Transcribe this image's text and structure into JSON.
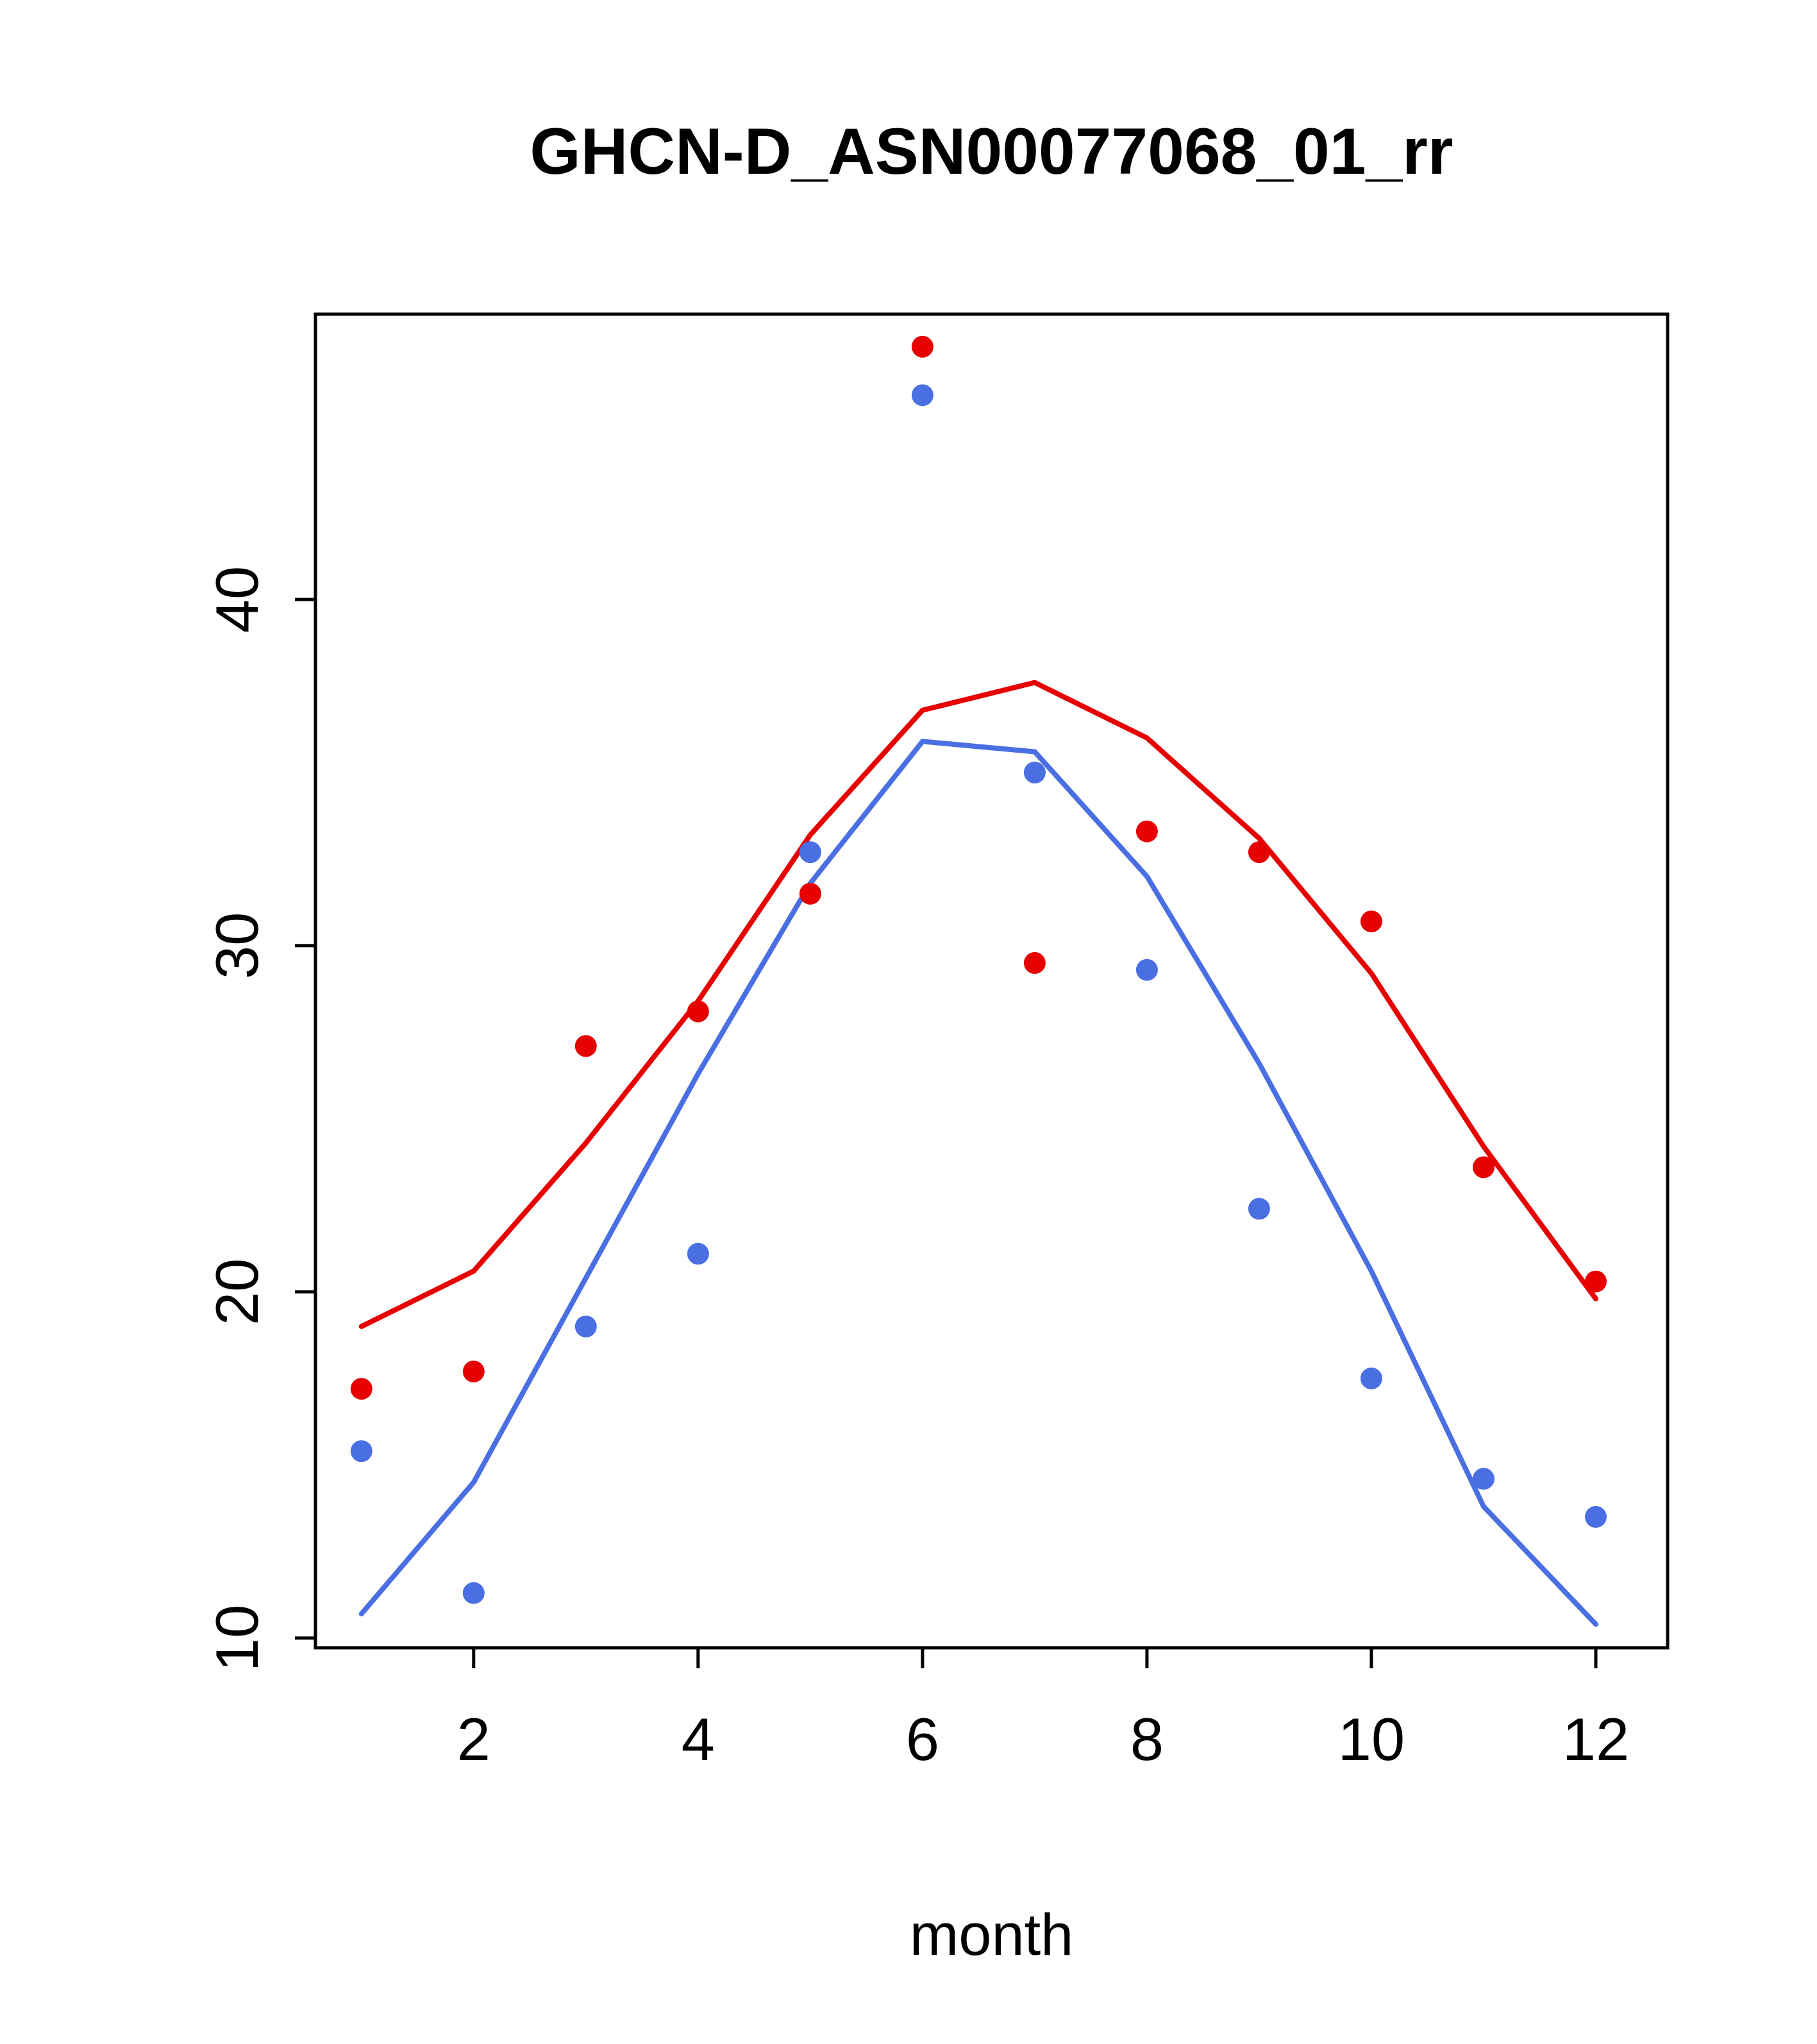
{
  "chart_data": {
    "type": "line",
    "title": "GHCN-D_ASN00077068_01_rr",
    "xlabel": "month",
    "ylabel": "",
    "x": [
      1,
      2,
      3,
      4,
      5,
      6,
      7,
      8,
      9,
      10,
      11,
      12
    ],
    "series": [
      {
        "name": "red-line",
        "kind": "line",
        "color": "#e60000",
        "values": [
          19.0,
          20.6,
          24.3,
          28.4,
          33.2,
          36.8,
          37.6,
          36.0,
          33.1,
          29.2,
          24.2,
          19.8
        ]
      },
      {
        "name": "blue-line",
        "kind": "line",
        "color": "#4a6fe3",
        "values": [
          10.7,
          14.5,
          20.4,
          26.3,
          31.8,
          35.9,
          35.6,
          32.0,
          26.6,
          20.6,
          13.8,
          10.4
        ]
      },
      {
        "name": "red-points",
        "kind": "scatter",
        "color": "#e60000",
        "values": [
          17.2,
          17.7,
          27.1,
          28.1,
          31.5,
          47.3,
          29.5,
          33.3,
          32.7,
          30.7,
          23.6,
          20.3
        ]
      },
      {
        "name": "blue-points",
        "kind": "scatter",
        "color": "#4a6fe3",
        "values": [
          15.4,
          11.3,
          19.0,
          21.1,
          32.7,
          45.9,
          35.0,
          29.3,
          22.4,
          17.5,
          14.6,
          13.5
        ]
      }
    ],
    "xticks": [
      2,
      4,
      6,
      8,
      10,
      12
    ],
    "yticks": [
      10,
      20,
      30,
      40
    ],
    "xlim": [
      0.59,
      12.64
    ],
    "ylim": [
      9.72,
      48.24
    ],
    "grid": false,
    "legend": "none"
  }
}
